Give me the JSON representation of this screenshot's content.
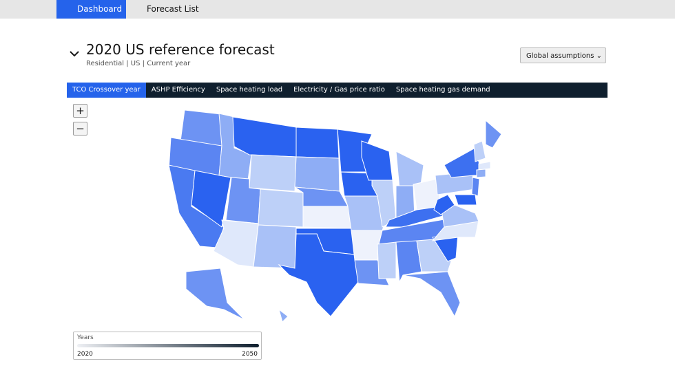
{
  "nav": {
    "tabs": [
      "Dashboard",
      "Forecast List"
    ]
  },
  "header": {
    "title": "2020 US reference forecast",
    "subtitle": "Residential | US | Current year",
    "button": "Global assumptions"
  },
  "metric_tabs": [
    "TCO Crossover year",
    "ASHP Efficiency",
    "Space heating load",
    "Electricity / Gas price ratio",
    "Space heating gas demand"
  ],
  "zoom": [
    "+",
    "−"
  ],
  "legend": {
    "title": "Years",
    "min": "2020",
    "max": "2050"
  }
}
